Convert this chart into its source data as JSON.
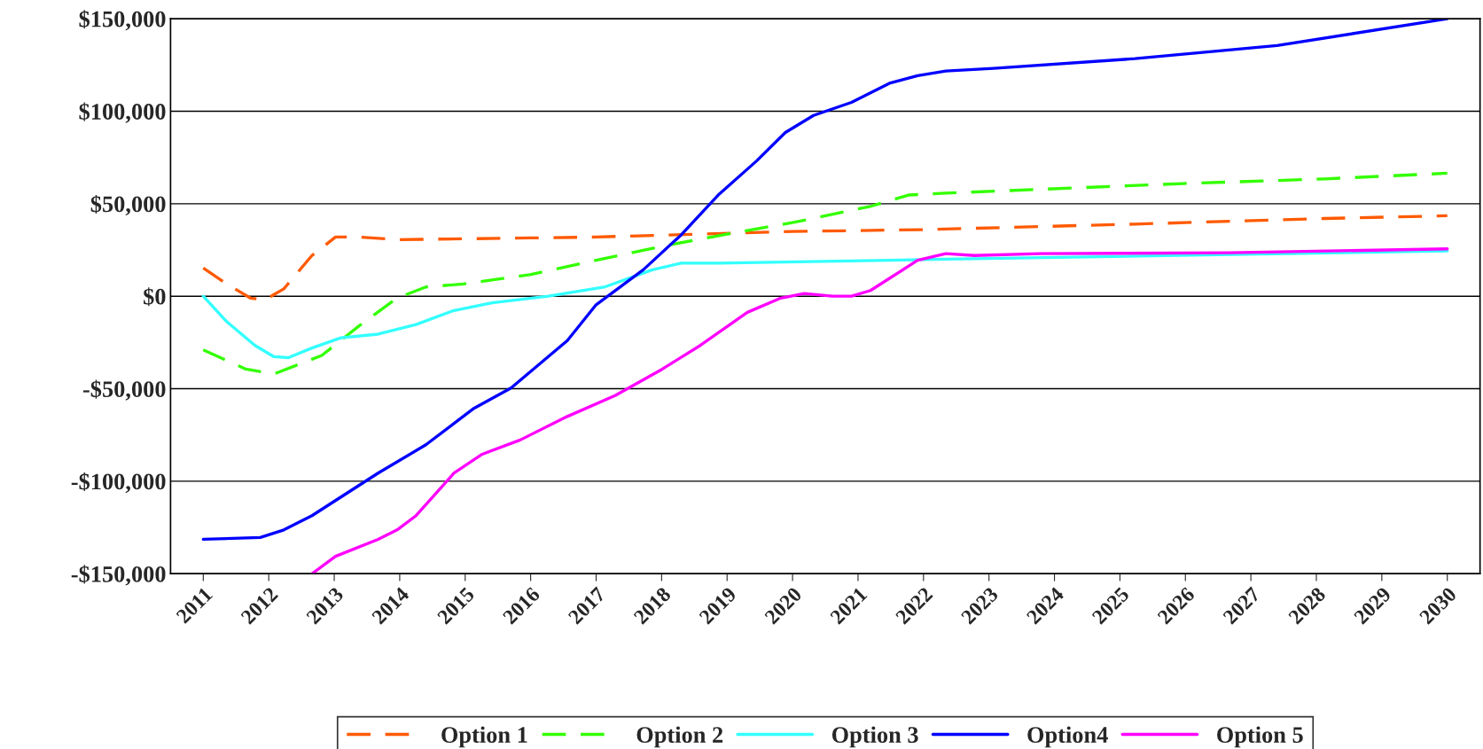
{
  "chart_data": {
    "type": "line",
    "xlim": [
      2010.5,
      2030.5
    ],
    "xticks": [
      2011,
      2012,
      2013,
      2014,
      2015,
      2016,
      2017,
      2018,
      2019,
      2020,
      2021,
      2022,
      2023,
      2024,
      2025,
      2026,
      2027,
      2028,
      2029,
      2030
    ],
    "ylim": [
      -150000,
      150000
    ],
    "yticks": [
      {
        "value": -150000,
        "label": "-$150,000"
      },
      {
        "value": -100000,
        "label": "-$100,000"
      },
      {
        "value": -50000,
        "label": "-$50,000"
      },
      {
        "value": 0,
        "label": "$0"
      },
      {
        "value": 50000,
        "label": "$50,000"
      },
      {
        "value": 100000,
        "label": "$100,000"
      },
      {
        "value": 150000,
        "label": "$150,000"
      }
    ],
    "grid": "y",
    "legend": "bottom",
    "series": [
      {
        "name": "Option 1",
        "color": "#ff5a00",
        "line_style": "dashed",
        "x": [
          2011.0,
          2011.36,
          2011.72,
          2011.94,
          2012.23,
          2012.66,
          2013.02,
          2013.38,
          2013.96,
          2016.0,
          2017.0,
          2020.0,
          2022.0,
          2025.23,
          2028.12,
          2030.0
        ],
        "values": [
          15300,
          6600,
          -1000,
          -2000,
          4000,
          22000,
          32000,
          32000,
          30600,
          31500,
          32000,
          35000,
          36000,
          39000,
          42000,
          43500
        ]
      },
      {
        "name": "Option 2",
        "color": "#33ff00",
        "line_style": "dashed",
        "x": [
          2011.0,
          2011.65,
          2012.08,
          2012.81,
          2013.38,
          2013.96,
          2014.4,
          2014.97,
          2015.99,
          2017.0,
          2018.01,
          2019.02,
          2020.03,
          2021.19,
          2021.77,
          2022.34,
          2023.79,
          2025.96,
          2028.12,
          2030.0
        ],
        "values": [
          -29000,
          -39400,
          -42000,
          -32000,
          -16000,
          -1000,
          5000,
          6600,
          11700,
          19400,
          27000,
          33700,
          40000,
          48600,
          54700,
          55700,
          57800,
          60900,
          63400,
          66500
        ]
      },
      {
        "name": "Option 3",
        "color": "#33ffff",
        "line_style": "solid",
        "x": [
          2011.0,
          2011.36,
          2011.79,
          2012.08,
          2012.3,
          2012.66,
          2013.1,
          2013.67,
          2014.25,
          2014.83,
          2015.41,
          2016.27,
          2017.14,
          2017.86,
          2018.3,
          2018.88,
          2022.34,
          2030.0
        ],
        "values": [
          0,
          -13800,
          -26600,
          -32700,
          -33200,
          -28000,
          -22500,
          -20500,
          -15300,
          -7700,
          -3600,
          0,
          5100,
          14300,
          17900,
          17900,
          20000,
          24500
        ]
      },
      {
        "name": "Option4",
        "color": "#0000ff",
        "line_style": "solid",
        "x": [
          2011.0,
          2011.87,
          2012.23,
          2012.66,
          2013.67,
          2014.4,
          2015.12,
          2015.7,
          2016.13,
          2016.56,
          2017.0,
          2017.72,
          2018.3,
          2018.88,
          2019.45,
          2019.89,
          2020.32,
          2020.9,
          2021.48,
          2021.91,
          2022.34,
          2023.07,
          2025.23,
          2027.4,
          2030.0
        ],
        "values": [
          -131400,
          -130400,
          -126300,
          -118600,
          -95600,
          -80300,
          -60900,
          -49600,
          -36800,
          -24000,
          -4600,
          14300,
          33200,
          55200,
          73100,
          88500,
          97700,
          104800,
          115100,
          119200,
          121700,
          123200,
          128400,
          135500,
          150000
        ]
      },
      {
        "name": "Option 5",
        "color": "#ff00ff",
        "line_style": "solid",
        "x": [
          2012.66,
          2013.02,
          2013.67,
          2013.96,
          2014.25,
          2014.83,
          2015.26,
          2015.84,
          2016.56,
          2017.29,
          2018.01,
          2018.59,
          2019.31,
          2019.82,
          2020.18,
          2020.61,
          2020.9,
          2021.19,
          2021.91,
          2022.34,
          2022.78,
          2023.79,
          2026.68,
          2030.0
        ],
        "values": [
          -150000,
          -140600,
          -131400,
          -126300,
          -118600,
          -95600,
          -85400,
          -77700,
          -65000,
          -53700,
          -39400,
          -26600,
          -8700,
          -1000,
          1500,
          0,
          0,
          3100,
          19400,
          23000,
          22000,
          23000,
          23500,
          25600
        ]
      }
    ]
  }
}
